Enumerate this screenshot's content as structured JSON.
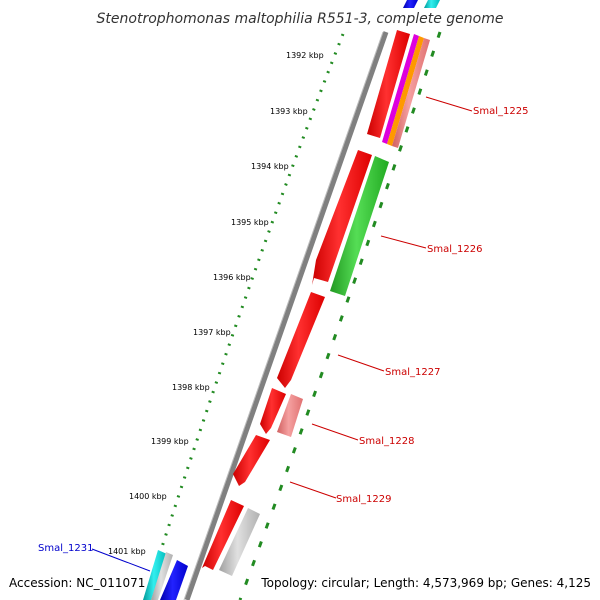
{
  "title": "Stenotrophomonas maltophilia R551-3, complete genome",
  "footer": {
    "accession": "Accession: NC_011071",
    "summary": "Topology: circular; Length: 4,573,969 bp; Genes: 4,125"
  },
  "ticks": [
    "1392 kbp",
    "1393 kbp",
    "1394 kbp",
    "1395 kbp",
    "1396 kbp",
    "1397 kbp",
    "1398 kbp",
    "1399 kbp",
    "1400 kbp",
    "1401 kbp"
  ],
  "gene_labels": [
    {
      "text": "Smal_1225",
      "color": "#cc0000"
    },
    {
      "text": "Smal_1226",
      "color": "#cc0000"
    },
    {
      "text": "Smal_1227",
      "color": "#cc0000"
    },
    {
      "text": "Smal_1228",
      "color": "#cc0000"
    },
    {
      "text": "Smal_1229",
      "color": "#cc0000"
    },
    {
      "text": "Smal_1231",
      "color": "#0000cc"
    }
  ],
  "colors": {
    "backbone": "#808080",
    "tick_dots": "#228b22",
    "red": "#ff0000",
    "green": "#33cc33",
    "pink": "#f08080",
    "grey": "#c0c0c0",
    "blue": "#0000ee",
    "cyan": "#00cccc",
    "magenta": "#dd00dd",
    "orange": "#ff9900"
  }
}
